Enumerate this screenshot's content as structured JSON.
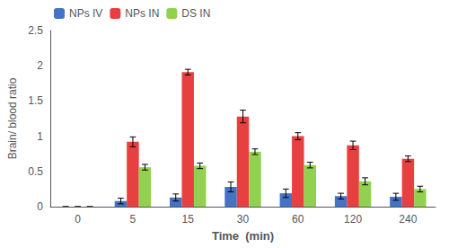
{
  "chart_data": {
    "type": "bar",
    "xlabel": "Time  (min)",
    "ylabel": "Brain/ blood ratio",
    "categories": [
      "0",
      "5",
      "15",
      "30",
      "60",
      "120",
      "240"
    ],
    "series": [
      {
        "name": "NPs IV",
        "color": "#4472c4",
        "values": [
          0.0,
          0.08,
          0.13,
          0.28,
          0.19,
          0.15,
          0.14
        ],
        "errors": [
          0.0,
          0.04,
          0.05,
          0.07,
          0.06,
          0.04,
          0.05
        ]
      },
      {
        "name": "NPs IN",
        "color": "#e84040",
        "values": [
          0.0,
          0.92,
          1.91,
          1.28,
          1.0,
          0.87,
          0.68
        ],
        "errors": [
          0.0,
          0.07,
          0.04,
          0.09,
          0.05,
          0.06,
          0.04
        ]
      },
      {
        "name": "DS IN",
        "color": "#92d050",
        "values": [
          0.0,
          0.56,
          0.58,
          0.78,
          0.59,
          0.36,
          0.25
        ],
        "errors": [
          0.0,
          0.04,
          0.04,
          0.04,
          0.04,
          0.05,
          0.04
        ]
      }
    ],
    "ylim": [
      0,
      2.5
    ],
    "yticks": [
      0,
      0.5,
      1.0,
      1.5,
      2.0,
      2.5
    ],
    "grid": false,
    "legend": "upper left"
  }
}
